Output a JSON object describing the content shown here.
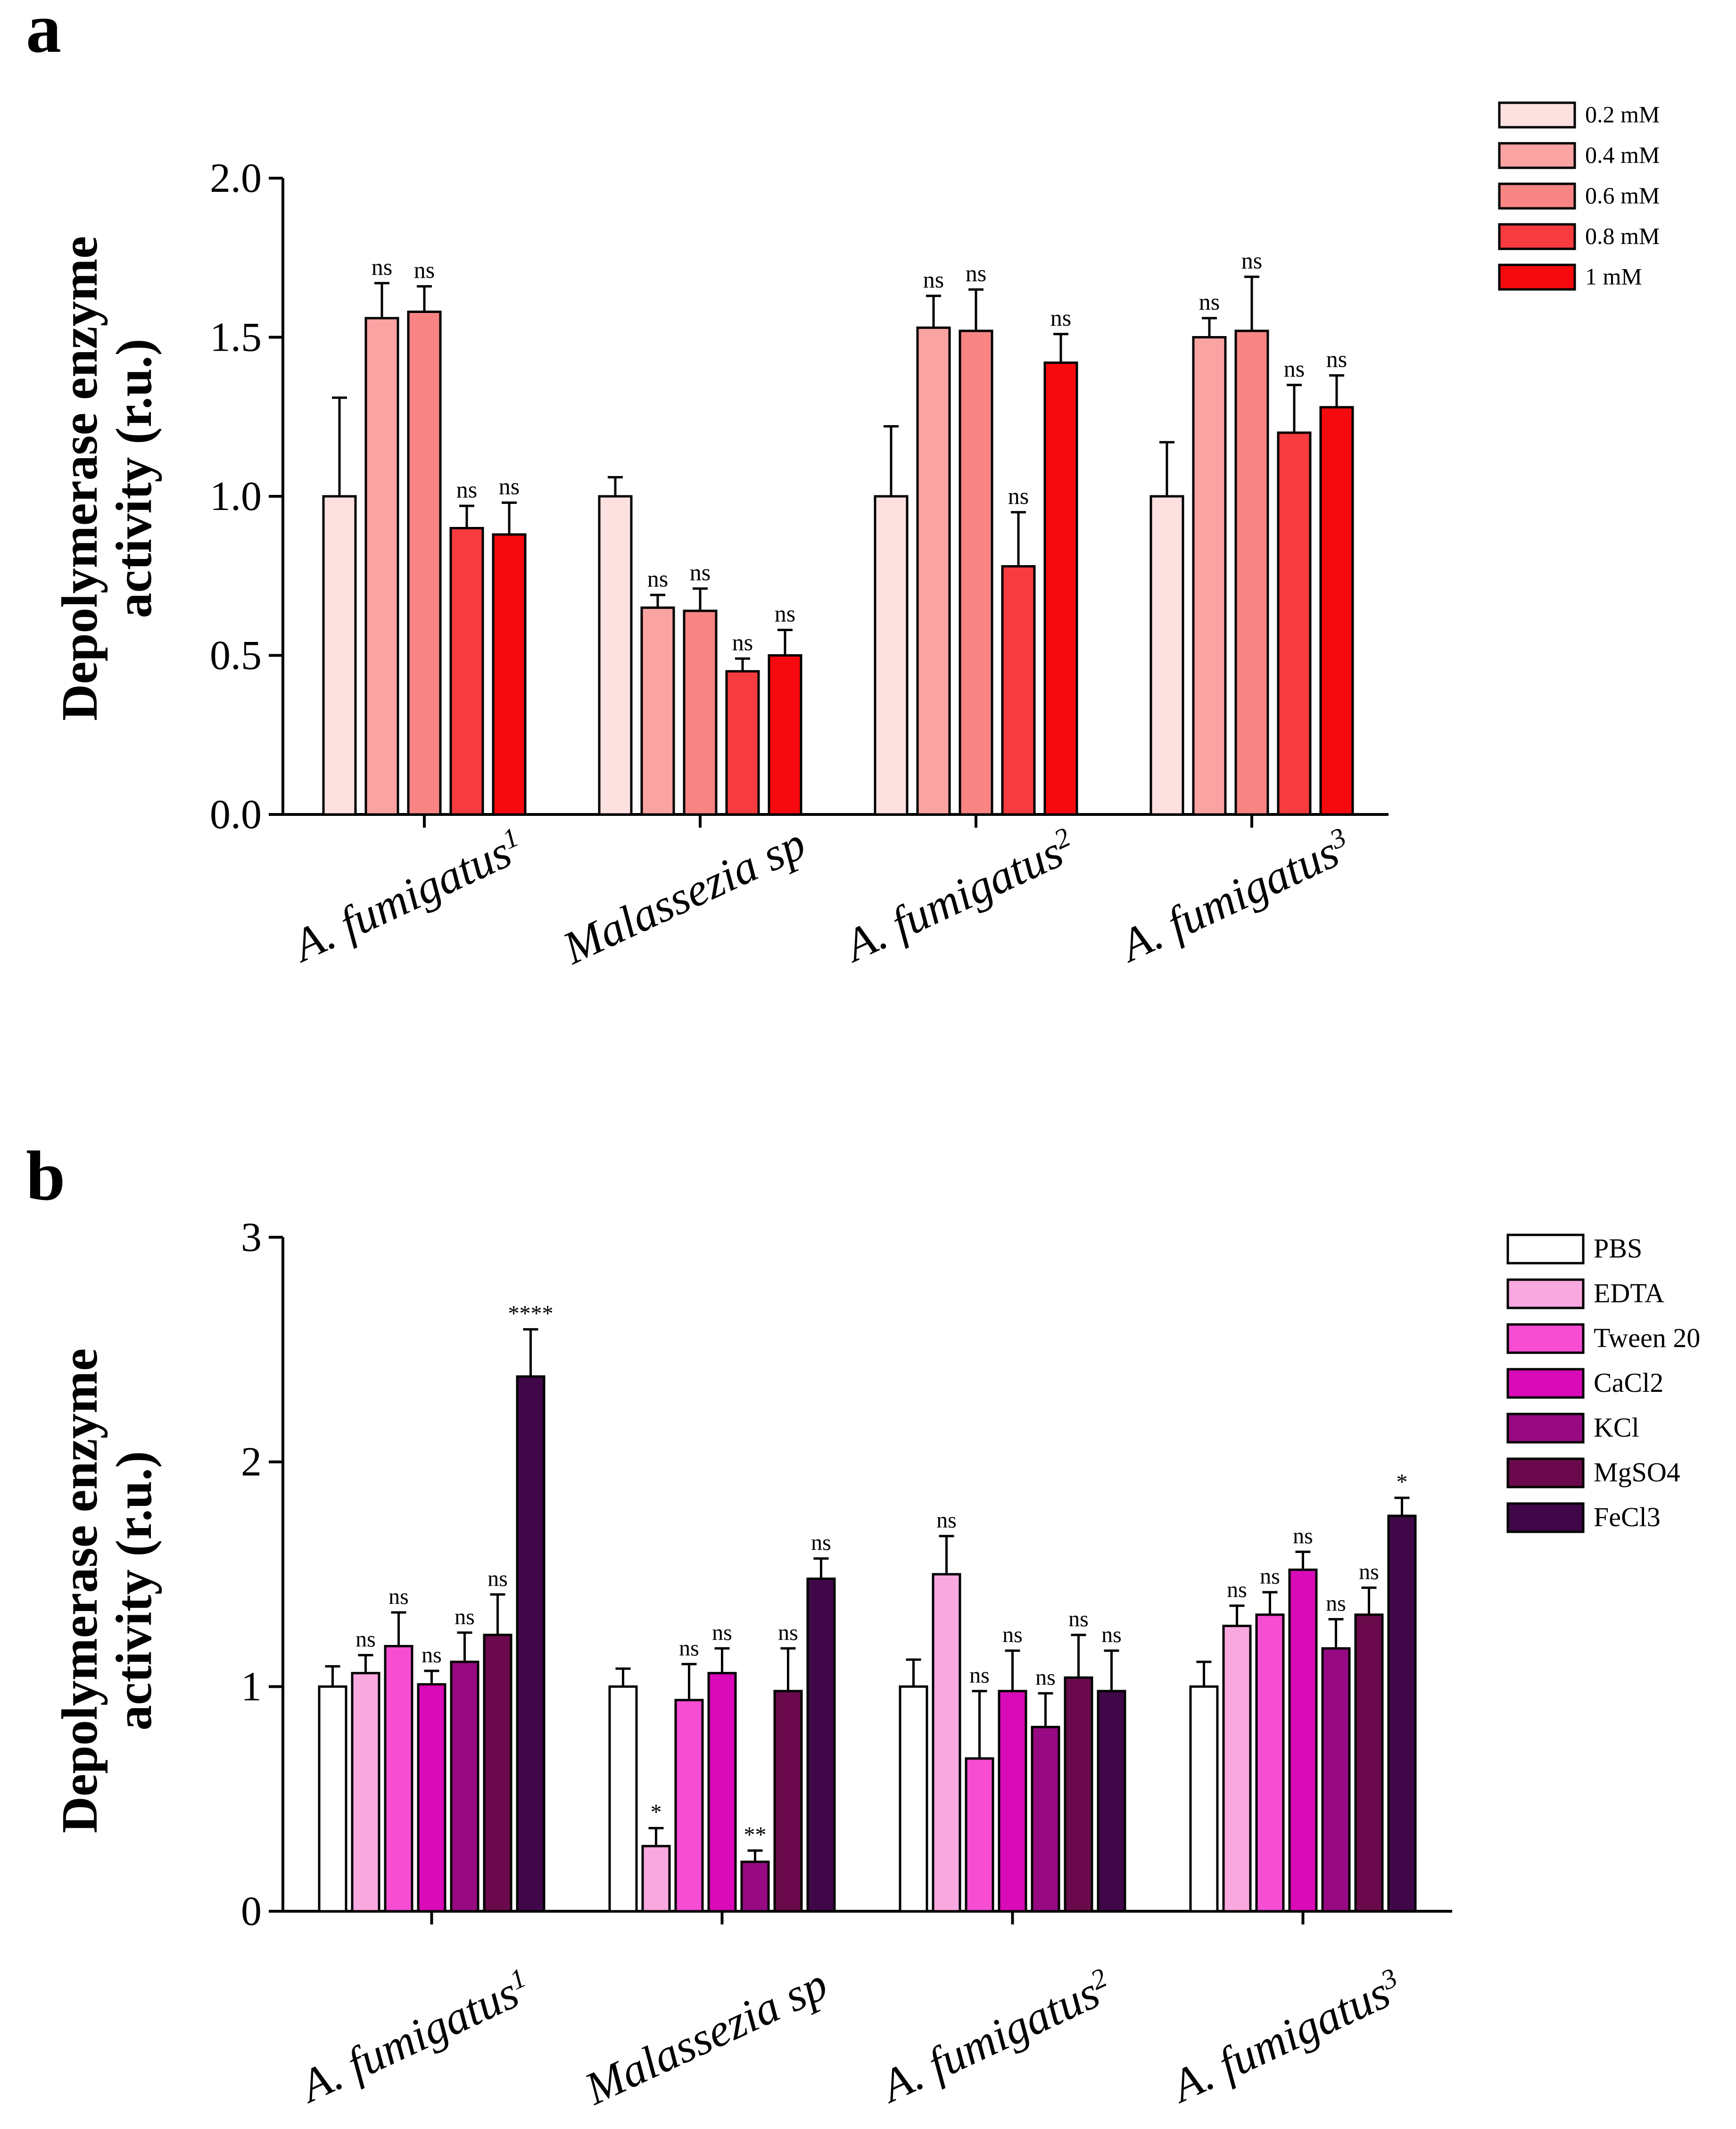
{
  "panel_labels": [
    "a",
    "b"
  ],
  "chart_data": [
    {
      "type": "bar",
      "panel": "a",
      "title": "",
      "xlabel": "",
      "ylabel_line1": "Depolymerase enzyme",
      "ylabel_line2": "activity (r.u.)",
      "ylim": [
        0,
        2.0
      ],
      "yticks": [
        "0.0",
        "0.5",
        "1.0",
        "1.5",
        "2.0"
      ],
      "ytick_values": [
        0,
        0.5,
        1.0,
        1.5,
        2.0
      ],
      "categories": [
        {
          "name": "A. fumigatus",
          "sup": "1"
        },
        {
          "name": "Malassezia sp",
          "sup": ""
        },
        {
          "name": "A. fumigatus",
          "sup": "2"
        },
        {
          "name": "A. fumigatus",
          "sup": "3"
        }
      ],
      "legend_position": "top-right",
      "series": [
        {
          "name": "0.2 mM",
          "color": "#FDE0E0",
          "values": [
            1.0,
            1.0,
            1.0,
            1.0
          ],
          "errors": [
            0.31,
            0.06,
            0.22,
            0.17
          ],
          "sig": [
            "",
            "",
            "",
            ""
          ]
        },
        {
          "name": "0.4 mM",
          "color": "#FAA3A3",
          "values": [
            1.56,
            0.65,
            1.53,
            1.5
          ],
          "errors": [
            0.11,
            0.04,
            0.1,
            0.06
          ],
          "sig": [
            "ns",
            "ns",
            "ns",
            "ns"
          ]
        },
        {
          "name": "0.6 mM",
          "color": "#F88484",
          "values": [
            1.58,
            0.64,
            1.52,
            1.52
          ],
          "errors": [
            0.08,
            0.07,
            0.13,
            0.17
          ],
          "sig": [
            "ns",
            "ns",
            "ns",
            "ns"
          ]
        },
        {
          "name": "0.8 mM",
          "color": "#F73B3F",
          "values": [
            0.9,
            0.45,
            0.78,
            1.2
          ],
          "errors": [
            0.07,
            0.04,
            0.17,
            0.15
          ],
          "sig": [
            "ns",
            "ns",
            "ns",
            "ns"
          ]
        },
        {
          "name": "1 mM",
          "color": "#F70A0F",
          "values": [
            0.88,
            0.5,
            1.42,
            1.28
          ],
          "errors": [
            0.1,
            0.08,
            0.09,
            0.1
          ],
          "sig": [
            "ns",
            "ns",
            "ns",
            "ns"
          ]
        }
      ]
    },
    {
      "type": "bar",
      "panel": "b",
      "title": "",
      "xlabel": "",
      "ylabel_line1": "Depolymerase enzyme",
      "ylabel_line2": "activity (r.u.)",
      "ylim": [
        0,
        3
      ],
      "yticks": [
        "0",
        "1",
        "2",
        "3"
      ],
      "ytick_values": [
        0,
        1,
        2,
        3
      ],
      "categories": [
        {
          "name": "A. fumigatus",
          "sup": "1"
        },
        {
          "name": "Malassezia sp",
          "sup": ""
        },
        {
          "name": "A. fumigatus",
          "sup": "2"
        },
        {
          "name": "A. fumigatus",
          "sup": "3"
        }
      ],
      "legend_position": "top-right",
      "series": [
        {
          "name": "PBS",
          "color": "#FFFFFF",
          "values": [
            1.0,
            1.0,
            1.0,
            1.0
          ],
          "errors": [
            0.09,
            0.08,
            0.12,
            0.11
          ],
          "sig": [
            "",
            "",
            "",
            ""
          ]
        },
        {
          "name": "EDTA",
          "color": "#F9A8E0",
          "values": [
            1.06,
            0.29,
            1.5,
            1.27
          ],
          "errors": [
            0.08,
            0.08,
            0.17,
            0.09
          ],
          "sig": [
            "ns",
            "*",
            "ns",
            "ns"
          ]
        },
        {
          "name": "Tween 20",
          "color": "#F64DD2",
          "values": [
            1.18,
            0.94,
            0.68,
            1.32
          ],
          "errors": [
            0.15,
            0.16,
            0.3,
            0.1
          ],
          "sig": [
            "ns",
            "ns",
            "ns",
            "ns"
          ]
        },
        {
          "name": "CaCl2",
          "color": "#D90AB7",
          "values": [
            1.01,
            1.06,
            0.98,
            1.52
          ],
          "errors": [
            0.06,
            0.11,
            0.18,
            0.08
          ],
          "sig": [
            "ns",
            "ns",
            "ns",
            "ns"
          ]
        },
        {
          "name": "KCl",
          "color": "#970A82",
          "values": [
            1.11,
            0.22,
            0.82,
            1.17
          ],
          "errors": [
            0.13,
            0.05,
            0.15,
            0.13
          ],
          "sig": [
            "ns",
            "**",
            "ns",
            "ns"
          ]
        },
        {
          "name": "MgSO4",
          "color": "#6A0A4C",
          "values": [
            1.23,
            0.98,
            1.04,
            1.32
          ],
          "errors": [
            0.18,
            0.19,
            0.19,
            0.12
          ],
          "sig": [
            "ns",
            "ns",
            "ns",
            "ns"
          ]
        },
        {
          "name": "FeCl3",
          "color": "#3F0748",
          "values": [
            2.38,
            1.48,
            0.98,
            1.76
          ],
          "errors": [
            0.21,
            0.09,
            0.18,
            0.08
          ],
          "sig": [
            "****",
            "ns",
            "ns",
            "*"
          ]
        }
      ]
    }
  ]
}
